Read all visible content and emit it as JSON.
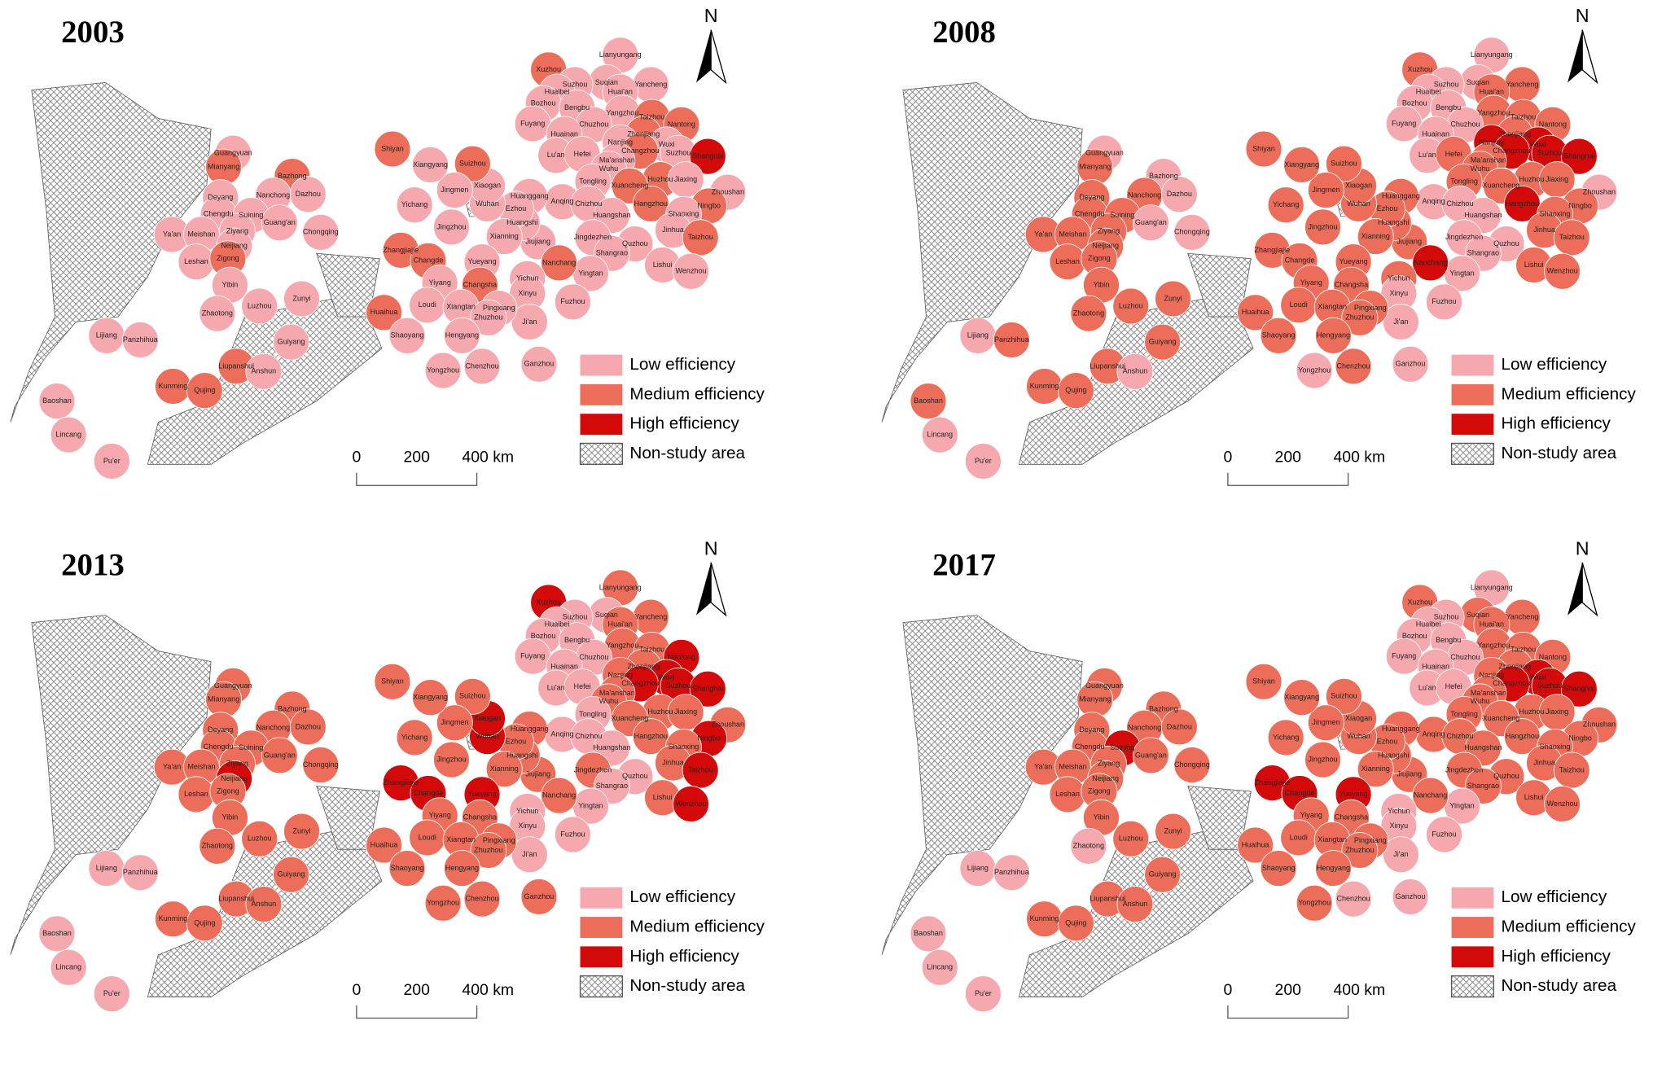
{
  "north": "N",
  "legend": [
    "Low efficiency",
    "Medium efficiency",
    "High efficiency",
    "Non-study area"
  ],
  "colors": [
    "#f5a8ad",
    "#ec6e5a",
    "#d40a0a"
  ],
  "scale_labels": [
    "0",
    "200",
    "400 km"
  ],
  "cities": [
    "Lianyungang",
    "Xuzhou",
    "Suqian",
    "Yancheng",
    "Suzhou",
    "Huai'an",
    "Huaibei",
    "Bozhou",
    "Bengbu",
    "Yangzhou",
    "Taizhou",
    "Fuyang",
    "Chuzhou",
    "Nantong",
    "Huainan",
    "Zhenjiang",
    "Nanjing",
    "Wuxi",
    "Lu'an",
    "Hefei",
    "Changzhou",
    "Suzhou",
    "Shanghai",
    "Ma'anshan",
    "Wuhu",
    "Huzhou",
    "Jiaxing",
    "Zhoushan",
    "Tongling",
    "Xuancheng",
    "Ningbo",
    "Anqing",
    "Chizhou",
    "Hangzhou",
    "Shaoxing",
    "Huangshan",
    "Jinhua",
    "Taizhou",
    "Jingdezhen",
    "Quzhou",
    "Shangrao",
    "Lishui",
    "Wenzhou",
    "Yingtan",
    "Jiujiang",
    "Nanchang",
    "Fuzhou",
    "Yichun",
    "Xinyu",
    "Ji'an",
    "Ganzhou",
    "Huanggang",
    "Huangshi",
    "Ezhou",
    "Wuhan",
    "Xiaogan",
    "Suizhou",
    "Xianning",
    "Jingmen",
    "Xiangyang",
    "Shiyan",
    "Yichang",
    "Jingzhou",
    "Zhangjiajie",
    "Changde",
    "Yueyang",
    "Changsha",
    "Yiyang",
    "Loudi",
    "Xiangtan",
    "Pingxiang",
    "Zhuzhou",
    "Huaihua",
    "Shaoyang",
    "Hengyang",
    "Yongzhou",
    "Chenzhou",
    "Guangyuan",
    "Bazhong",
    "Mianyang",
    "Nanchong",
    "Dazhou",
    "Deyang",
    "Chengdu",
    "Suining",
    "Guang'an",
    "Ya'an",
    "Meishan",
    "Ziyang",
    "Chongqing",
    "Neijiang",
    "Leshan",
    "Zigong",
    "Yibin",
    "Zhaotong",
    "Luzhou",
    "Zunyi",
    "Lijiang",
    "Panzhihua",
    "Guiyang",
    "Liupanshui",
    "Anshun",
    "Kunming",
    "Qujing",
    "Baoshan",
    "Lincang",
    "Pu'er"
  ],
  "panels": [
    {
      "title": "2003",
      "high": [
        22
      ],
      "medium": [
        1,
        10,
        13,
        15,
        20,
        25,
        29,
        30,
        33,
        37,
        45,
        56,
        60,
        63,
        64,
        66,
        72,
        78,
        79,
        92,
        100,
        102,
        103
      ]
    },
    {
      "title": "2008",
      "high": [
        16,
        17,
        20,
        21,
        22,
        33,
        45
      ],
      "medium": [
        1,
        3,
        5,
        9,
        10,
        13,
        15,
        19,
        23,
        24,
        25,
        26,
        28,
        29,
        30,
        34,
        36,
        37,
        41,
        42,
        44,
        47,
        51,
        52,
        53,
        54,
        55,
        56,
        57,
        58,
        59,
        60,
        61,
        62,
        63,
        64,
        65,
        66,
        67,
        68,
        69,
        70,
        71,
        72,
        73,
        74,
        76,
        79,
        80,
        82,
        83,
        84,
        86,
        87,
        88,
        90,
        91,
        92,
        93,
        94,
        95,
        96,
        98,
        99,
        100,
        102,
        103,
        104
      ]
    },
    {
      "title": "2013",
      "high": [
        1,
        13,
        17,
        20,
        21,
        22,
        30,
        37,
        42,
        54,
        55,
        63,
        64,
        65,
        90
      ],
      "medium": [
        0,
        3,
        5,
        9,
        10,
        15,
        16,
        23,
        24,
        25,
        26,
        27,
        29,
        33,
        34,
        36,
        38,
        41,
        44,
        45,
        50,
        51,
        52,
        53,
        56,
        57,
        58,
        59,
        60,
        61,
        62,
        66,
        67,
        68,
        69,
        70,
        71,
        72,
        73,
        74,
        75,
        76,
        77,
        78,
        79,
        80,
        81,
        82,
        83,
        84,
        85,
        86,
        87,
        88,
        89,
        91,
        92,
        93,
        94,
        95,
        96,
        99,
        100,
        101,
        102,
        103
      ]
    },
    {
      "title": "2017",
      "high": [
        17,
        20,
        21,
        22,
        63,
        64,
        65,
        84
      ],
      "medium": [
        1,
        2,
        3,
        5,
        9,
        10,
        13,
        15,
        16,
        23,
        24,
        25,
        26,
        27,
        28,
        29,
        30,
        31,
        32,
        33,
        34,
        35,
        36,
        37,
        38,
        39,
        40,
        41,
        42,
        44,
        45,
        51,
        52,
        53,
        54,
        55,
        56,
        57,
        58,
        59,
        60,
        61,
        62,
        66,
        67,
        68,
        69,
        70,
        71,
        72,
        73,
        74,
        75,
        77,
        78,
        79,
        80,
        81,
        82,
        83,
        85,
        86,
        87,
        88,
        89,
        90,
        91,
        92,
        93,
        95,
        96,
        99,
        100,
        101,
        102,
        103
      ]
    }
  ]
}
